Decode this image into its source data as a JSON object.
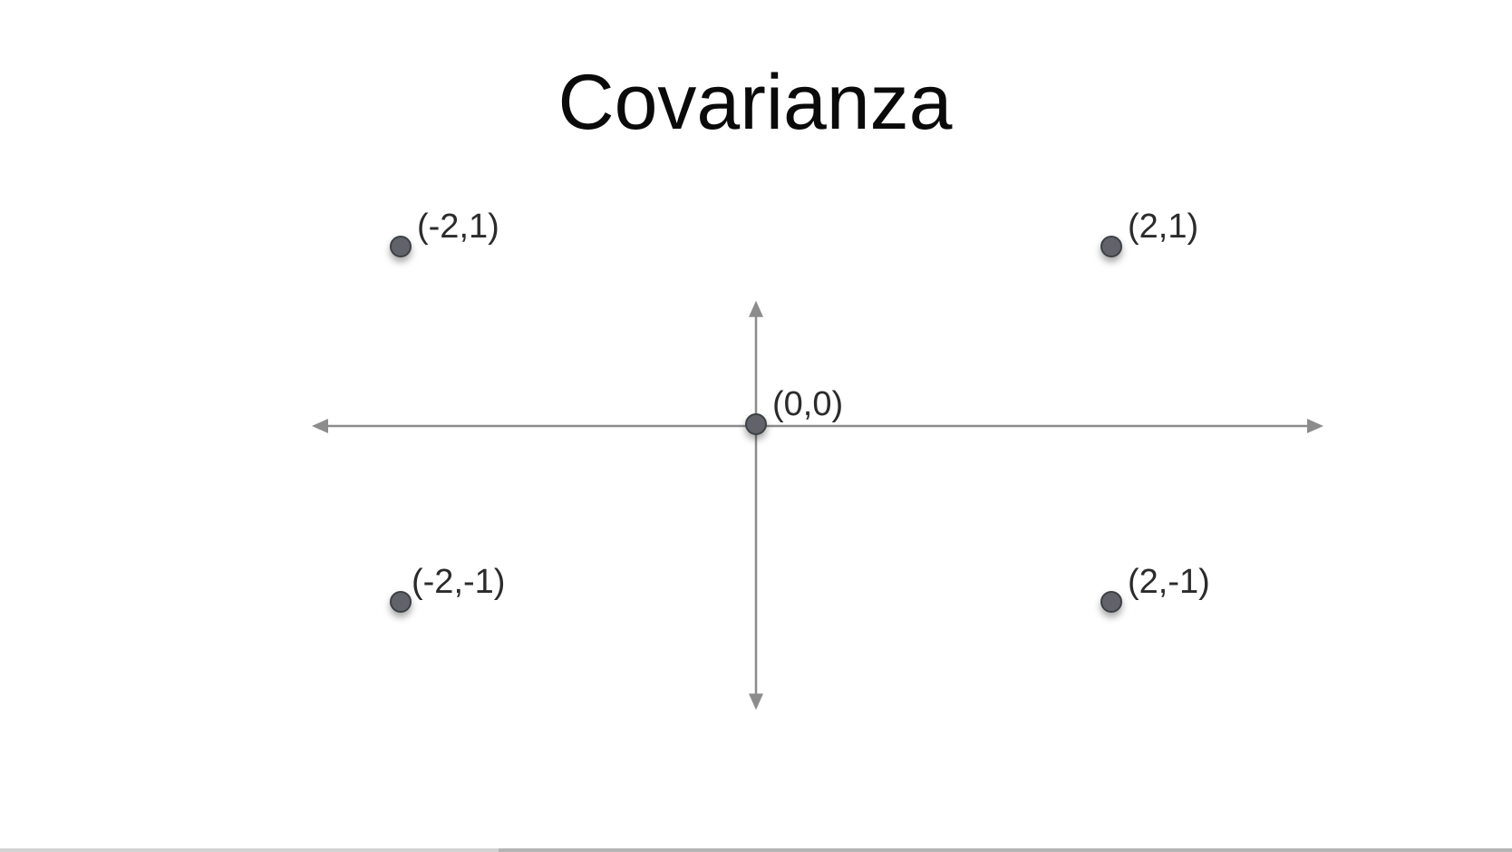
{
  "colors": {
    "axis": "#8c8c8c",
    "point_fill": "#62646b",
    "point_stroke": "#3e3f44",
    "label": "#2b2b2b",
    "title": "#0a0a0a",
    "background": "#ffffff"
  },
  "video": {
    "progress_fraction": 0.33
  },
  "chart_data": {
    "type": "scatter",
    "title": "Covarianza",
    "xlabel": "",
    "ylabel": "",
    "xlim": [
      -2.5,
      3.5
    ],
    "ylim": [
      -1.7,
      1.7
    ],
    "grid": false,
    "legend": "none",
    "axes": "centered-arrows",
    "points": [
      {
        "x": -2,
        "y": 1,
        "label": "(-2,1)"
      },
      {
        "x": 2,
        "y": 1,
        "label": "(2,1)"
      },
      {
        "x": 0,
        "y": 0,
        "label": "(0,0)"
      },
      {
        "x": -2,
        "y": -1,
        "label": "(-2,-1)"
      },
      {
        "x": 2,
        "y": -1,
        "label": "(2,-1)"
      }
    ]
  }
}
